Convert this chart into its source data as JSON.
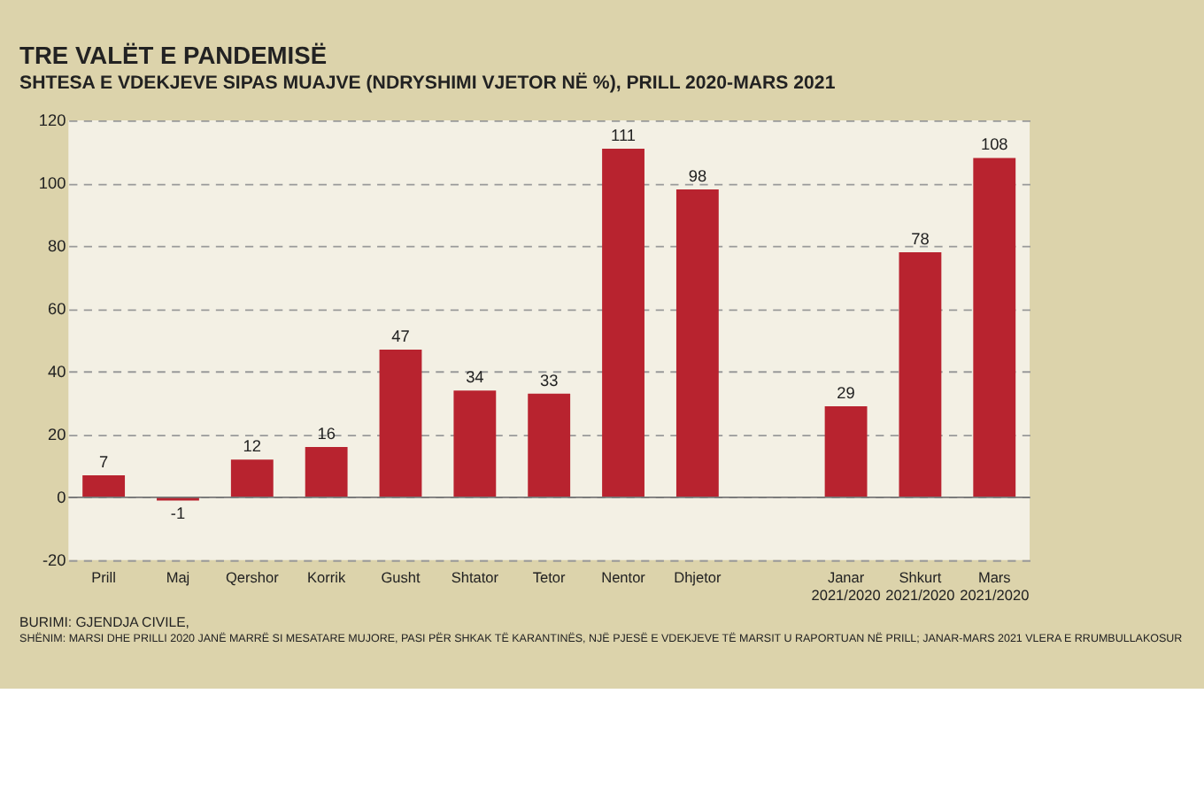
{
  "chart_data": {
    "type": "bar",
    "title": "TRE VALËT E PANDEMISË",
    "subtitle": "SHTESA E VDEKJEVE SIPAS MUAJVE (NDRYSHIMI VJETOR NË %), PRILL 2020-MARS 2021",
    "categories": [
      "Prill",
      "Maj",
      "Qershor",
      "Korrik",
      "Gusht",
      "Shtator",
      "Tetor",
      "Nentor",
      "Dhjetor",
      null,
      "Janar 2021/2020",
      "Shkurt 2021/2020",
      "Mars 2021/2020"
    ],
    "values": [
      7,
      -1,
      12,
      16,
      47,
      34,
      33,
      111,
      98,
      null,
      29,
      78,
      108
    ],
    "color": "#b8232f",
    "data_labels": true,
    "ylim": [
      -20,
      120
    ],
    "yticks": [
      -20,
      0,
      20,
      40,
      60,
      80,
      100,
      120
    ],
    "grid": "y",
    "annotations": [
      "BURIMI: GJENDJA CIVILE,",
      "SHËNIM: MARSI DHE PRILLI 2020 JANË MARRË SI MESATARE MUJORE, PASI PËR SHKAK TË KARANTINËS, NJË PJESË E VDEKJEVE TË MARSIT U RAPORTUAN NË PRILL; JANAR-MARS 2021 VLERA E RRUMBULLAKOSUR"
    ]
  }
}
